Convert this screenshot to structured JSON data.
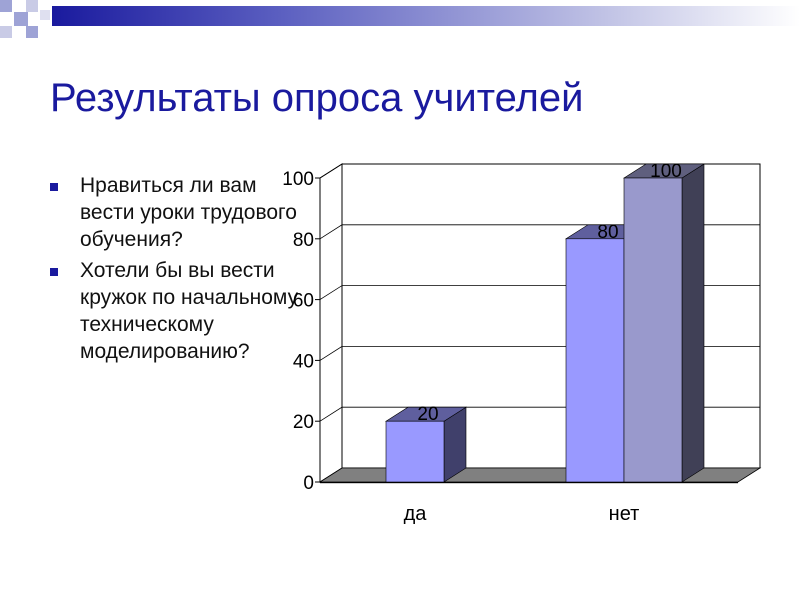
{
  "title": "Результаты опроса учителей",
  "bullets": [
    "Нравиться ли вам вести уроки трудового обучения?",
    "Хотели бы вы вести кружок по начальному техническому моделированию?"
  ],
  "colors": {
    "title": "#1a1a9e",
    "bullet": "#1a1a9e",
    "series1": "#9999ff",
    "series2": "#9999cc"
  },
  "chart_data": {
    "type": "bar",
    "categories": [
      "да",
      "нет"
    ],
    "series": [
      {
        "values": [
          20,
          80
        ]
      },
      {
        "values": [
          null,
          100
        ]
      }
    ],
    "ylim": [
      0,
      100
    ],
    "yticks": [
      0,
      20,
      40,
      60,
      80,
      100
    ],
    "data_labels": true,
    "grid": true,
    "legend": "none"
  }
}
